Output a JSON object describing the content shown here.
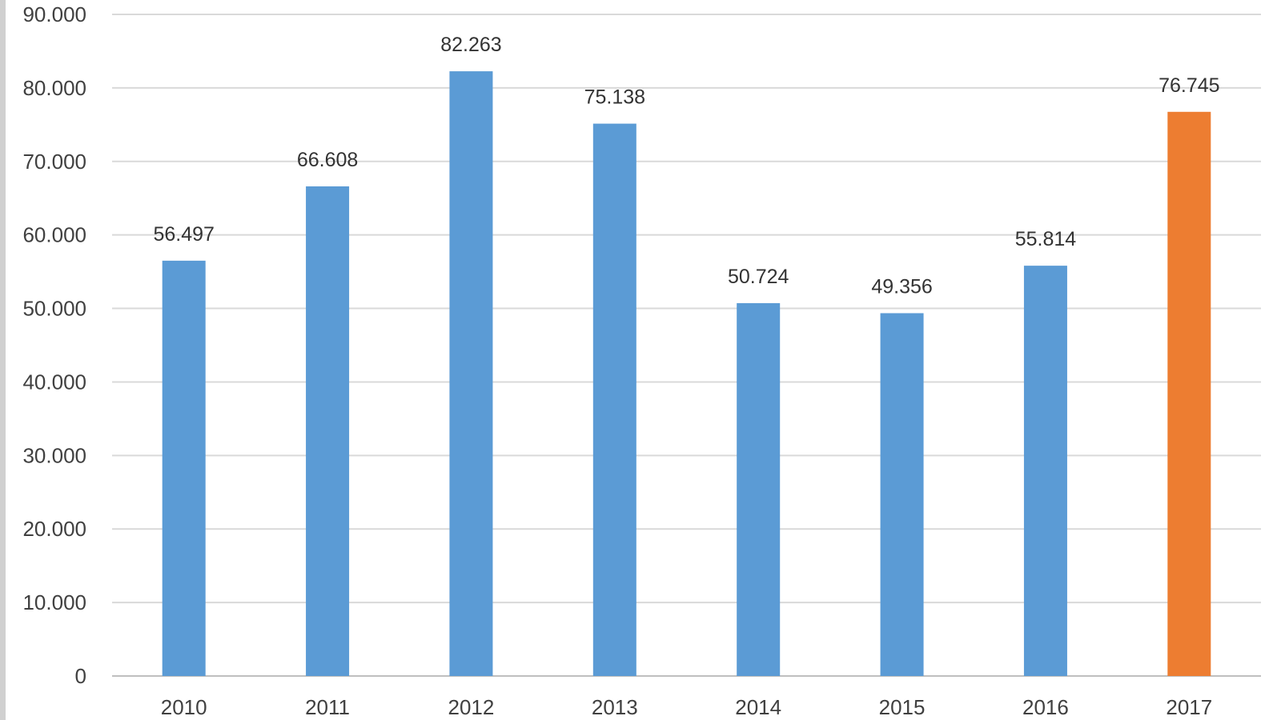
{
  "chart_data": {
    "type": "bar",
    "title": "",
    "xlabel": "",
    "ylabel": "",
    "categories": [
      "2010",
      "2011",
      "2012",
      "2013",
      "2014",
      "2015",
      "2016",
      "2017"
    ],
    "values": [
      56497,
      66608,
      82263,
      75138,
      50724,
      49356,
      55814,
      76745
    ],
    "data_labels": [
      "56.497",
      "66.608",
      "82.263",
      "75.138",
      "50.724",
      "49.356",
      "55.814",
      "76.745"
    ],
    "bar_colors": [
      "#5b9bd5",
      "#5b9bd5",
      "#5b9bd5",
      "#5b9bd5",
      "#5b9bd5",
      "#5b9bd5",
      "#5b9bd5",
      "#ed7d31"
    ],
    "ylim": [
      0,
      90000
    ],
    "yticks": [
      0,
      10000,
      20000,
      30000,
      40000,
      50000,
      60000,
      70000,
      80000,
      90000
    ],
    "ytick_labels": [
      "0",
      "10.000",
      "20.000",
      "30.000",
      "40.000",
      "50.000",
      "60.000",
      "70.000",
      "80.000",
      "90.000"
    ],
    "grid": true,
    "legend": "none"
  }
}
